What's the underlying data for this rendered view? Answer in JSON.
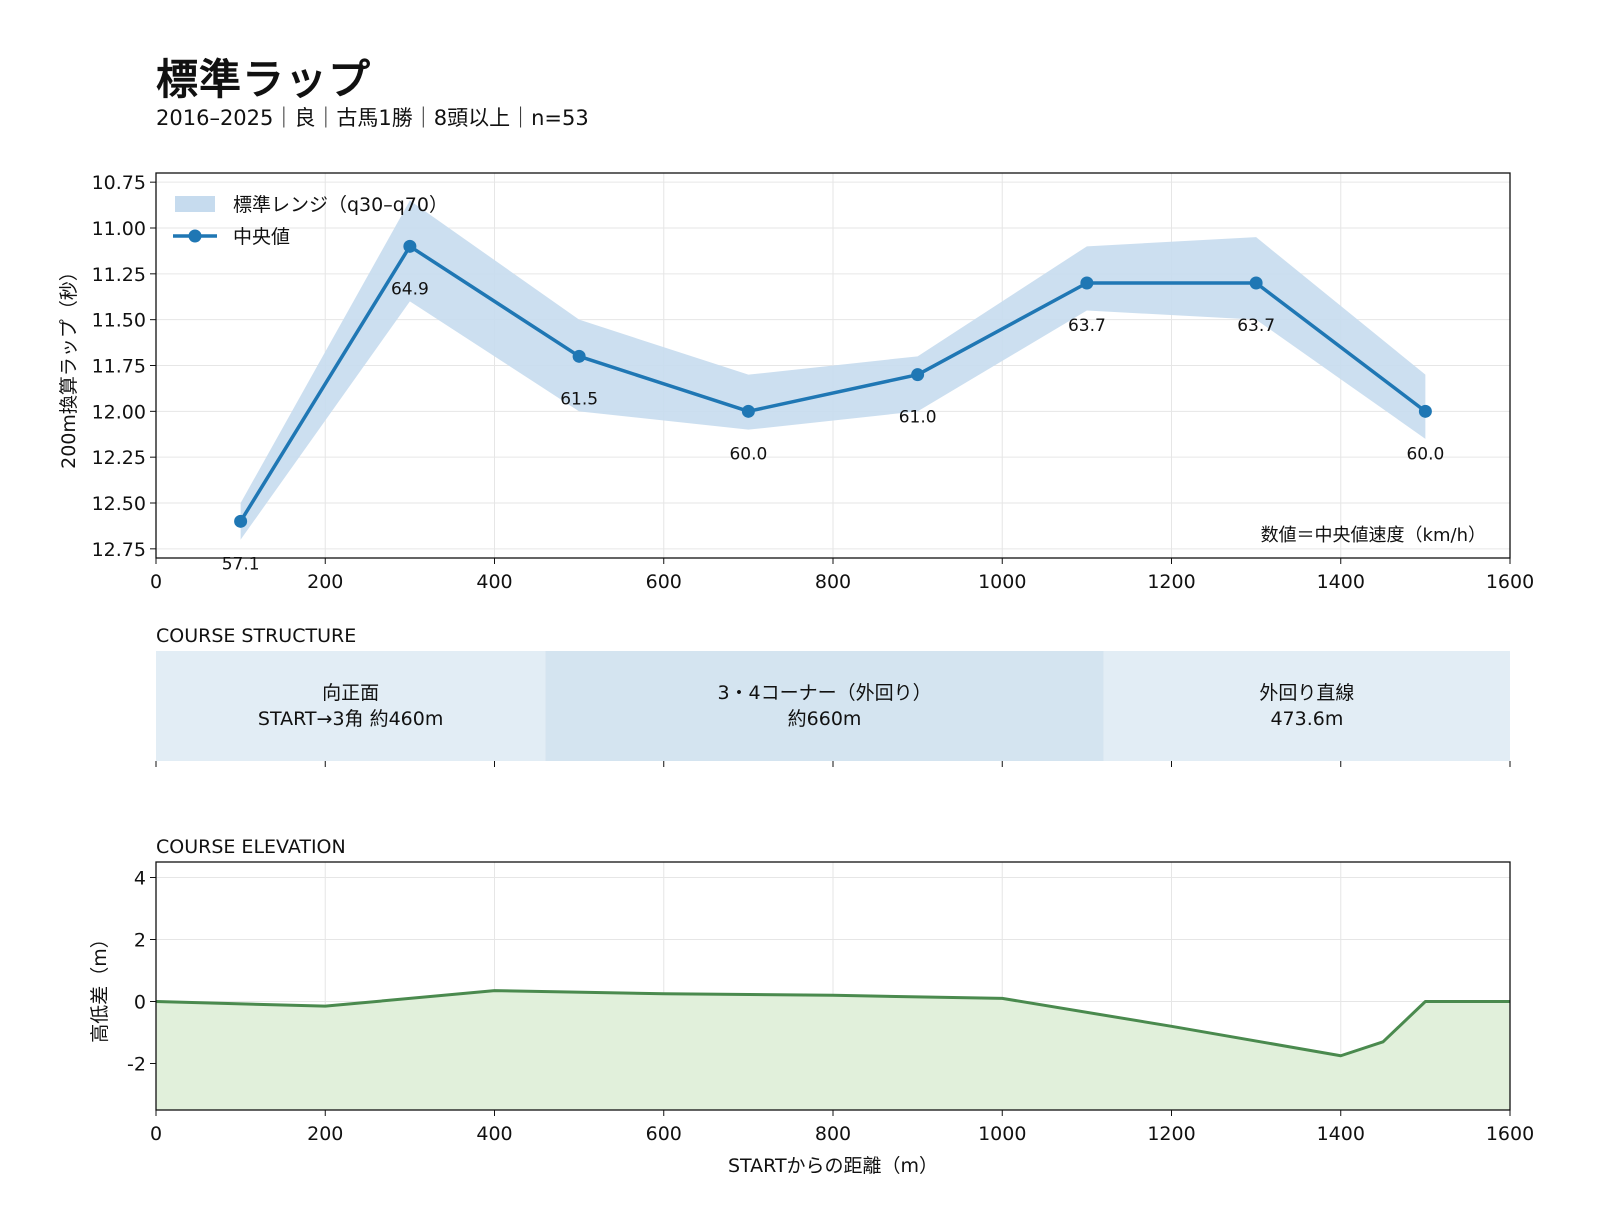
{
  "title": "標準ラップ",
  "subtitle": "2016–2025｜良｜古馬1勝｜8頭以上｜n=53",
  "chart_data": [
    {
      "type": "line",
      "x": [
        100,
        300,
        500,
        700,
        900,
        1100,
        1300,
        1500
      ],
      "series": [
        {
          "name": "中央値",
          "values": [
            12.6,
            11.1,
            11.7,
            12.0,
            11.8,
            11.3,
            11.3,
            12.0
          ],
          "color": "#1f77b4"
        }
      ],
      "band": {
        "name": "標準レンジ（q30–q70）",
        "lower": [
          12.5,
          10.85,
          11.5,
          11.8,
          11.7,
          11.1,
          11.05,
          11.8
        ],
        "upper": [
          12.7,
          11.4,
          12.0,
          12.1,
          12.0,
          11.45,
          11.5,
          12.15
        ],
        "color": "#c6dbee"
      },
      "data_labels": [
        "57.1",
        "64.9",
        "61.5",
        "60.0",
        "61.0",
        "63.7",
        "63.7",
        "60.0"
      ],
      "annotation": "数値＝中央値速度（km/h）",
      "ylabel": "200m換算ラップ（秒）",
      "xlim": [
        0,
        1600
      ],
      "ylim": [
        12.8,
        10.7
      ],
      "y_inverted": true,
      "xticks": [
        0,
        200,
        400,
        600,
        800,
        1000,
        1200,
        1400,
        1600
      ],
      "yticks": [
        10.75,
        11.0,
        11.25,
        11.5,
        11.75,
        12.0,
        12.25,
        12.5,
        12.75
      ],
      "ytick_labels": [
        "10.75",
        "11.00",
        "11.25",
        "11.50",
        "11.75",
        "12.00",
        "12.25",
        "12.50",
        "12.75"
      ],
      "grid": true,
      "legend": "top-left"
    },
    {
      "type": "table",
      "title": "COURSE STRUCTURE",
      "xlim": [
        0,
        1600
      ],
      "segments": [
        {
          "start": 0,
          "end": 460,
          "line1": "向正面",
          "line2": "START→3角 約460m",
          "color": "#e2edf5"
        },
        {
          "start": 460,
          "end": 1120,
          "line1": "3・4コーナー（外回り）",
          "line2": "約660m",
          "color": "#d4e4f0"
        },
        {
          "start": 1120,
          "end": 1600,
          "line1": "外回り直線",
          "line2": "473.6m",
          "color": "#e2edf5"
        }
      ]
    },
    {
      "type": "area",
      "title": "COURSE ELEVATION",
      "x": [
        0,
        200,
        400,
        600,
        800,
        1000,
        1200,
        1400,
        1450,
        1500,
        1600
      ],
      "values": [
        0,
        -0.15,
        0.35,
        0.25,
        0.2,
        0.1,
        -0.8,
        -1.75,
        -1.3,
        0,
        0
      ],
      "line_color": "#4a8a4e",
      "fill_color": "#e1f0db",
      "xlabel": "STARTからの距離（m）",
      "ylabel": "高低差（m）",
      "xlim": [
        0,
        1600
      ],
      "ylim": [
        -3.5,
        4.5
      ],
      "xticks": [
        0,
        200,
        400,
        600,
        800,
        1000,
        1200,
        1400,
        1600
      ],
      "yticks": [
        4,
        2,
        0,
        -2
      ],
      "grid": true
    }
  ]
}
